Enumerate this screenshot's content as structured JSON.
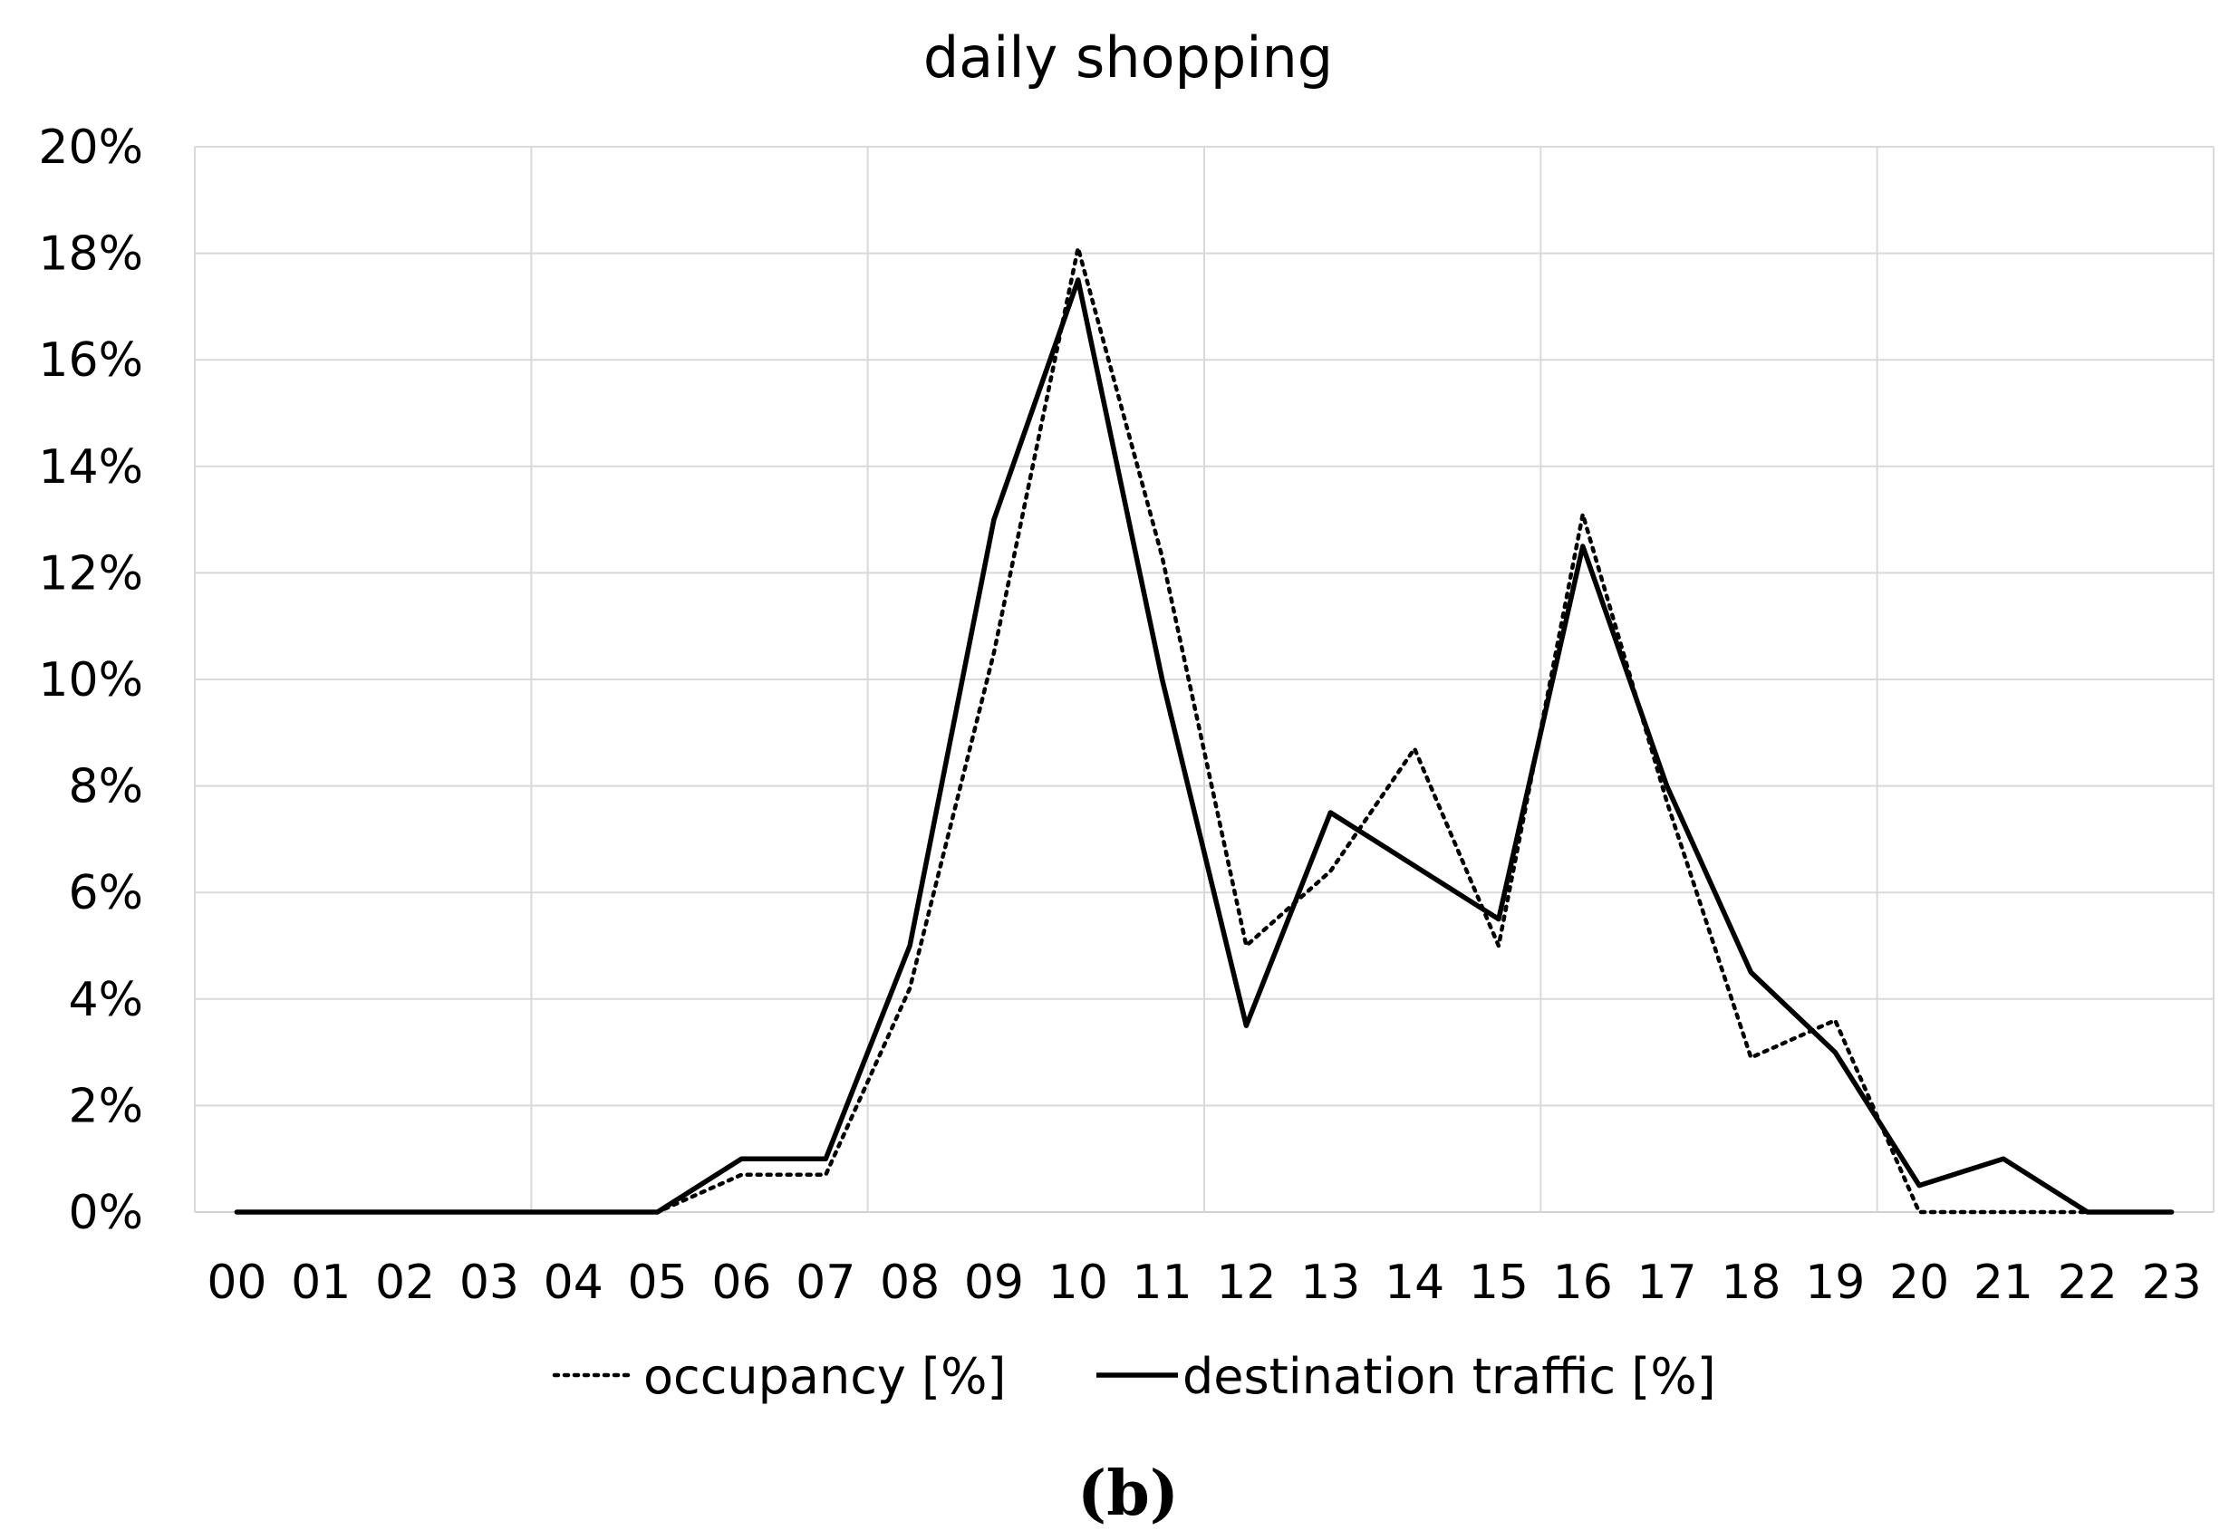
{
  "chart_data": {
    "type": "line",
    "title": "daily shopping",
    "caption": "(b)",
    "x": [
      "00",
      "01",
      "02",
      "03",
      "04",
      "05",
      "06",
      "07",
      "08",
      "09",
      "10",
      "11",
      "12",
      "13",
      "14",
      "15",
      "16",
      "17",
      "18",
      "19",
      "20",
      "21",
      "22",
      "23"
    ],
    "ylim": [
      0,
      20
    ],
    "yticks": [
      "0%",
      "2%",
      "4%",
      "6%",
      "8%",
      "10%",
      "12%",
      "14%",
      "16%",
      "18%",
      "20%"
    ],
    "grid": true,
    "legend_position": "bottom",
    "series": [
      {
        "name": "occupancy [%]",
        "style": "dotted",
        "values": [
          0,
          0,
          0,
          0,
          0,
          0,
          0.7,
          0.7,
          4.2,
          10.5,
          18.1,
          12.3,
          5.0,
          6.4,
          8.7,
          5.0,
          13.1,
          7.7,
          2.9,
          3.6,
          0,
          0,
          0,
          0
        ]
      },
      {
        "name": "destination traffic [%]",
        "style": "solid",
        "values": [
          0,
          0,
          0,
          0,
          0,
          0,
          1.0,
          1.0,
          5.0,
          13.0,
          17.5,
          10.0,
          3.5,
          7.5,
          6.5,
          5.5,
          12.5,
          8.0,
          4.5,
          3.0,
          0.5,
          1.0,
          0,
          0
        ]
      }
    ]
  }
}
